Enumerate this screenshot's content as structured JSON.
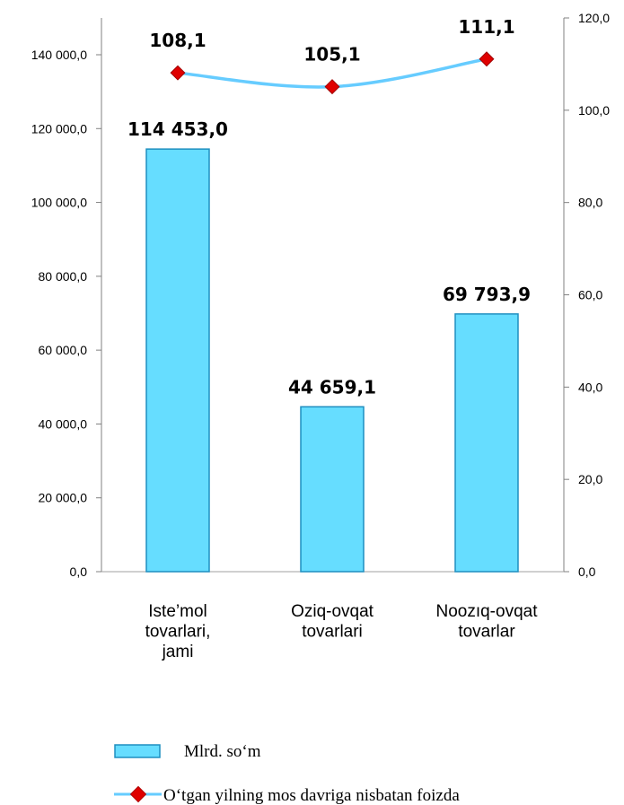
{
  "chart_data": {
    "type": "bar",
    "categories": [
      [
        "Iste’mol",
        "tovarlari,",
        "jami"
      ],
      [
        "Oziq-ovqat",
        "tovarlari"
      ],
      [
        "Noozıq-ovqat",
        "tovarlar"
      ]
    ],
    "series": [
      {
        "name": "Mlrd. so‘m",
        "type": "bar",
        "axis": "left",
        "values": [
          114453.0,
          44659.1,
          69793.9
        ],
        "labels": [
          "114 453,0",
          "44 659,1",
          "69 793,9"
        ],
        "color": "#66DDFF",
        "stroke": "#1F8FC0"
      },
      {
        "name": "O‘tgan yilning mos davriga nisbatan foizda",
        "type": "line",
        "axis": "right",
        "values": [
          108.1,
          105.1,
          111.1
        ],
        "labels": [
          "108,1",
          "105,1",
          "111,1"
        ],
        "color": "#66CCFF",
        "marker_color": "#E00000"
      }
    ],
    "y_left": {
      "min": 0,
      "max": 140000,
      "step": 20000,
      "tick_labels": [
        "0,0",
        "20 000,0",
        "40 000,0",
        "60 000,0",
        "80 000,0",
        "100 000,0",
        "120 000,0",
        "140 000,0"
      ]
    },
    "y_right": {
      "min": 0,
      "max": 120,
      "step": 20,
      "tick_labels": [
        "0,0",
        "20,0",
        "40,0",
        "60,0",
        "80,0",
        "100,0",
        "120,0"
      ]
    },
    "legend_position": "bottom"
  }
}
